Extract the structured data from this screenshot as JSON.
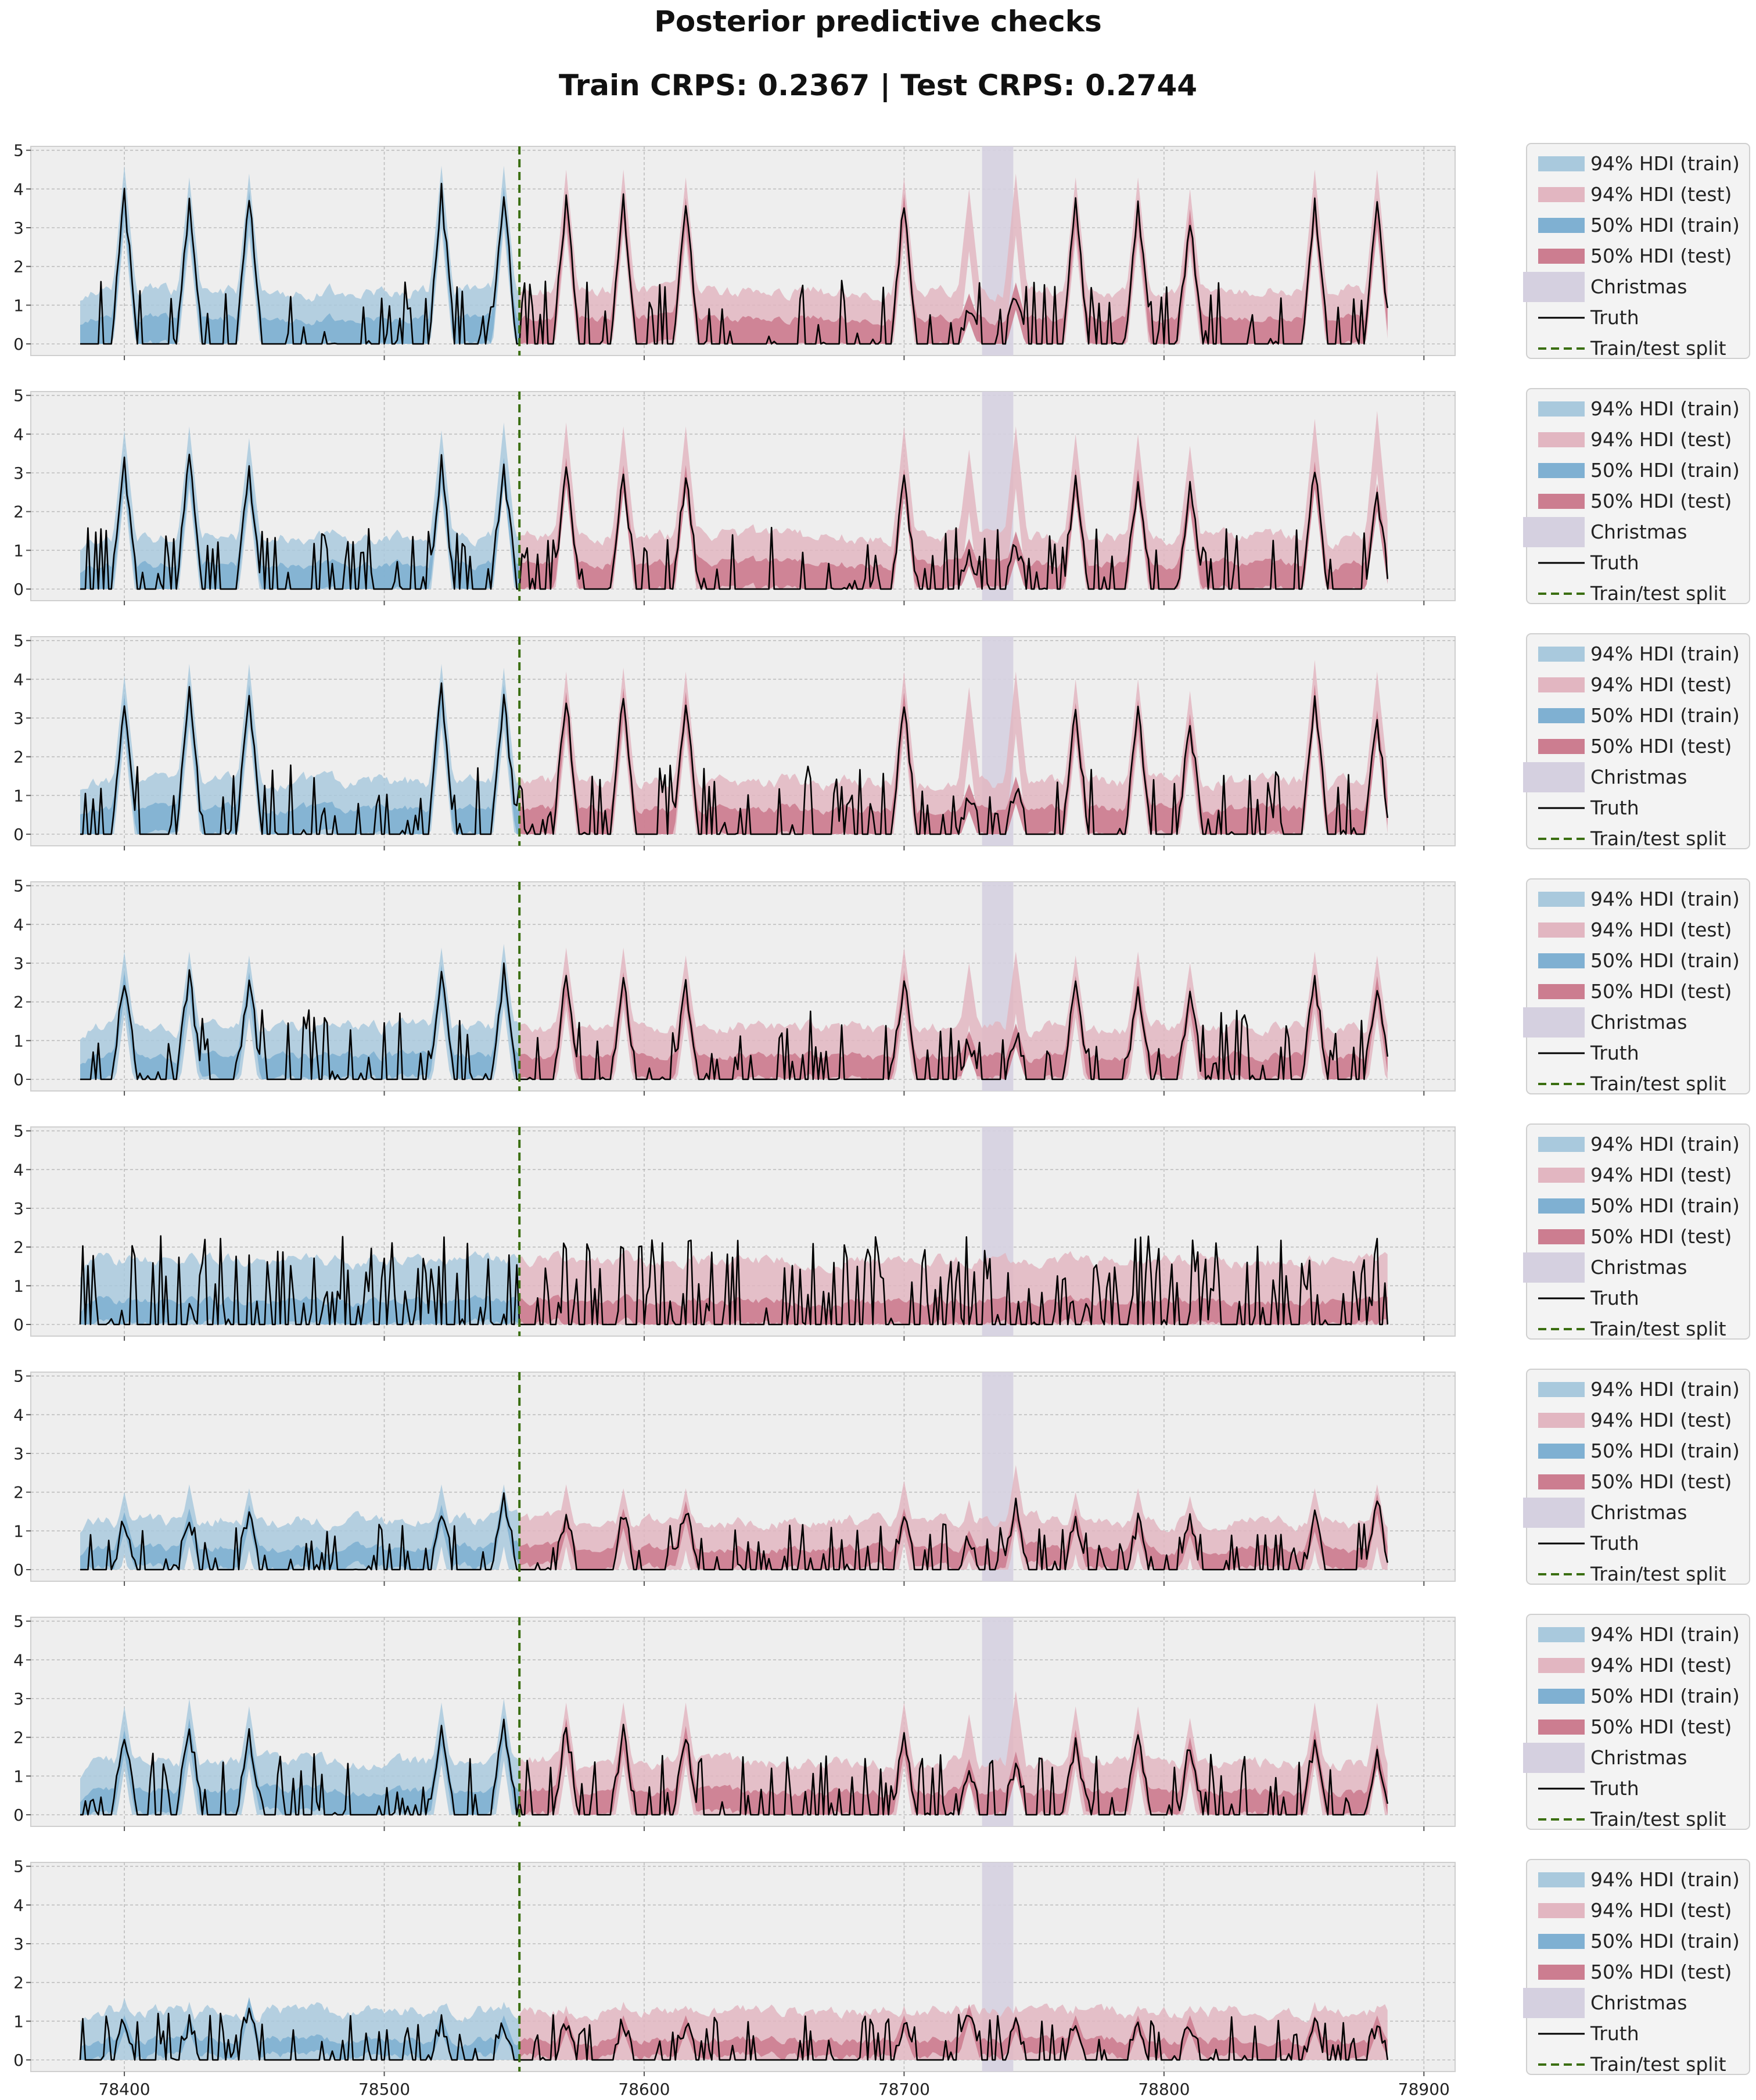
{
  "figure": {
    "title": "Posterior predictive checks",
    "subtitle": "Train CRPS: 0.2367 | Test CRPS: 0.2744"
  },
  "colors": {
    "axes_bg": "#EEEEEE",
    "grid": "#BDBDBD",
    "train_94": "#A9C9DD",
    "train_50": "#7FB0D2",
    "test_94": "#E2B6C1",
    "test_50": "#CC7D90",
    "christmas": "#D5D0E0",
    "truth": "#000000",
    "split": "#3A6E10"
  },
  "legend": {
    "location": "outside-right",
    "entries": [
      "94% HDI (train)",
      "94% HDI (test)",
      "50% HDI (train)",
      "50% HDI (test)",
      "Christmas",
      "Truth",
      "Train/test split"
    ]
  },
  "chart_data": {
    "type": "area",
    "shared_x_axis": true,
    "xlim": [
      78364,
      78912
    ],
    "ylim": [
      -0.3,
      5.1
    ],
    "x_ticks": [
      78400,
      78500,
      78600,
      78700,
      78800,
      78900
    ],
    "x_tick_labels": [
      "78400",
      "78500",
      "78600",
      "78700",
      "78800",
      "78900"
    ],
    "y_ticks": [
      0,
      1,
      2,
      3,
      4,
      5
    ],
    "y_tick_labels": [
      "0",
      "1",
      "2",
      "3",
      "4",
      "5"
    ],
    "grid": true,
    "x_start": 78383,
    "x_end": 78886,
    "train_test_split_x": 78552,
    "christmas_band": [
      78730,
      78742
    ],
    "panels": [
      {
        "peak_times": [
          78400,
          78425,
          78448,
          78522,
          78546,
          78570,
          78592,
          78616,
          78700,
          78725,
          78743,
          78766,
          78790,
          78810,
          78858,
          78882
        ],
        "truth_peaks": [
          3.9,
          3.6,
          3.8,
          4.0,
          3.9,
          3.8,
          3.8,
          3.6,
          3.7,
          1.0,
          1.3,
          3.6,
          3.6,
          3.3,
          3.7,
          3.6
        ],
        "hdi94_peaks": [
          4.6,
          4.3,
          4.4,
          4.6,
          4.6,
          4.5,
          4.5,
          4.3,
          4.3,
          4.0,
          4.4,
          4.3,
          4.3,
          4.0,
          4.5,
          4.5
        ],
        "hdi50_half_width": 0.35,
        "noise_level": 1.7,
        "hdi94_base": 0.9
      },
      {
        "peak_times": [
          78400,
          78425,
          78448,
          78522,
          78546,
          78570,
          78592,
          78616,
          78700,
          78725,
          78743,
          78766,
          78790,
          78810,
          78858,
          78882
        ],
        "truth_peaks": [
          3.3,
          3.4,
          3.1,
          3.3,
          3.2,
          3.2,
          3.0,
          3.0,
          2.9,
          1.0,
          1.2,
          2.9,
          2.9,
          2.6,
          3.1,
          2.5
        ],
        "hdi94_peaks": [
          4.1,
          4.2,
          3.9,
          4.1,
          4.3,
          4.3,
          4.2,
          4.2,
          4.2,
          3.6,
          4.2,
          4.0,
          4.0,
          3.7,
          4.4,
          4.6
        ],
        "hdi50_half_width": 0.35,
        "noise_level": 1.6,
        "hdi94_base": 0.9
      },
      {
        "peak_times": [
          78400,
          78425,
          78448,
          78522,
          78546,
          78570,
          78592,
          78616,
          78700,
          78725,
          78743,
          78766,
          78790,
          78810,
          78858,
          78882
        ],
        "truth_peaks": [
          3.4,
          3.8,
          3.7,
          3.8,
          3.7,
          3.5,
          3.6,
          3.5,
          3.5,
          1.0,
          1.2,
          3.2,
          3.3,
          2.9,
          3.7,
          3.0
        ],
        "hdi94_peaks": [
          4.1,
          4.4,
          4.4,
          4.4,
          4.3,
          4.2,
          4.3,
          4.2,
          4.2,
          3.8,
          4.2,
          4.0,
          4.0,
          3.7,
          4.5,
          4.2
        ],
        "hdi50_half_width": 0.35,
        "noise_level": 1.8,
        "hdi94_base": 0.9
      },
      {
        "peak_times": [
          78400,
          78425,
          78448,
          78522,
          78546,
          78570,
          78592,
          78616,
          78700,
          78725,
          78743,
          78766,
          78790,
          78810,
          78858,
          78882
        ],
        "truth_peaks": [
          2.6,
          2.7,
          2.6,
          2.8,
          2.8,
          2.6,
          2.6,
          2.4,
          2.6,
          1.0,
          1.2,
          2.5,
          2.5,
          2.2,
          2.6,
          2.5
        ],
        "hdi94_peaks": [
          3.3,
          3.3,
          3.2,
          3.4,
          3.5,
          3.4,
          3.4,
          3.2,
          3.4,
          3.0,
          3.3,
          3.2,
          3.3,
          3.0,
          3.3,
          3.2
        ],
        "hdi50_half_width": 0.3,
        "noise_level": 1.8,
        "hdi94_base": 0.9
      },
      {
        "peak_times": [],
        "truth_peaks": [],
        "hdi94_peaks": [],
        "hdi50_half_width": 0.3,
        "noise_level": 2.3,
        "hdi94_base": 1.2
      },
      {
        "peak_times": [
          78400,
          78425,
          78448,
          78522,
          78546,
          78570,
          78592,
          78616,
          78700,
          78725,
          78743,
          78766,
          78790,
          78810,
          78858,
          78882
        ],
        "truth_peaks": [
          1.3,
          1.4,
          1.5,
          1.5,
          1.9,
          1.3,
          1.4,
          1.6,
          1.4,
          0.8,
          1.6,
          1.4,
          1.3,
          1.2,
          1.3,
          1.8
        ],
        "hdi94_peaks": [
          2.0,
          2.2,
          2.1,
          2.2,
          2.2,
          2.2,
          2.1,
          2.1,
          2.3,
          1.8,
          2.7,
          2.0,
          2.1,
          1.9,
          2.1,
          2.2
        ],
        "hdi50_half_width": 0.25,
        "noise_level": 1.2,
        "hdi94_base": 0.8
      },
      {
        "peak_times": [
          78400,
          78425,
          78448,
          78522,
          78546,
          78570,
          78592,
          78616,
          78700,
          78725,
          78743,
          78766,
          78790,
          78810,
          78858,
          78882
        ],
        "truth_peaks": [
          2.0,
          2.3,
          2.0,
          2.2,
          2.4,
          2.3,
          2.1,
          2.1,
          2.0,
          1.2,
          1.4,
          2.0,
          2.0,
          1.8,
          2.0,
          1.6
        ],
        "hdi94_peaks": [
          2.8,
          3.0,
          2.8,
          2.9,
          3.0,
          2.9,
          2.9,
          2.9,
          2.9,
          2.6,
          3.2,
          2.8,
          2.8,
          2.5,
          2.9,
          2.9
        ],
        "hdi50_half_width": 0.3,
        "noise_level": 1.6,
        "hdi94_base": 0.9
      },
      {
        "peak_times": [
          78400,
          78425,
          78448,
          78522,
          78546,
          78570,
          78592,
          78616,
          78700,
          78725,
          78743,
          78766,
          78790,
          78810,
          78858,
          78882
        ],
        "truth_peaks": [
          1.0,
          1.0,
          1.5,
          1.0,
          1.0,
          1.0,
          1.0,
          1.0,
          1.0,
          1.3,
          1.0,
          1.0,
          1.0,
          1.0,
          1.0,
          1.0
        ],
        "hdi94_peaks": [
          1.6,
          1.5,
          1.6,
          1.4,
          1.5,
          1.4,
          1.5,
          1.4,
          1.4,
          1.2,
          1.4,
          1.4,
          1.4,
          1.2,
          1.5,
          1.4
        ],
        "hdi50_half_width": 0.2,
        "noise_level": 1.2,
        "hdi94_base": 0.8
      }
    ]
  }
}
